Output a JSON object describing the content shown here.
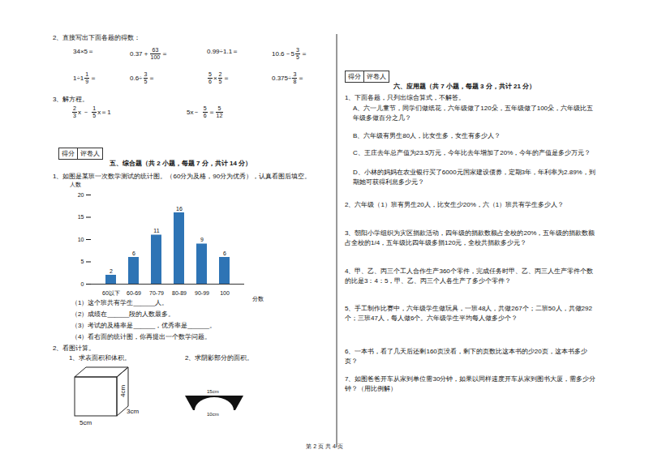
{
  "page": {
    "q2": {
      "title": "2、直接写出下面各题的得数：",
      "rows": [
        [
          [
            "34×5＝"
          ],
          [
            "0.37＋",
            {
              "n": "63",
              "d": "100"
            },
            "＝"
          ],
          [
            "0.99÷1.1＝"
          ],
          [
            "10.6－5",
            {
              "n": "3",
              "d": "5"
            },
            "＝"
          ]
        ],
        [
          [
            "1÷1",
            {
              "n": "1",
              "d": "9"
            },
            "＝"
          ],
          [
            "0.6÷",
            {
              "n": "3",
              "d": "5"
            },
            "＝"
          ],
          [
            {
              "n": "5",
              "d": "6"
            },
            "×",
            {
              "n": "2",
              "d": "5"
            },
            "＝"
          ],
          [
            "0.375÷",
            {
              "n": "3",
              "d": "8"
            },
            "＝"
          ]
        ]
      ]
    },
    "q3": {
      "title": "3、解方程。",
      "equations": [
        [
          {
            "n": "2",
            "d": "3"
          },
          "x － ",
          {
            "n": "1",
            "d": "5"
          },
          "x＝1"
        ],
        [
          "5x－ ",
          {
            "n": "5",
            "d": "6"
          },
          "＝",
          {
            "n": "5",
            "d": "12"
          }
        ]
      ]
    },
    "score_box": [
      "得分",
      "评卷人"
    ],
    "section5": {
      "heading": "五、综合题（共 2 小题，每题 7 分，共计 14 分）",
      "q1": {
        "text": "1、如图是某班一次数学测试的统计图。（60分为及格，90分为优秀），认真看图后填空。",
        "blanks": [
          "（1）这个班共有学生______人。",
          "（2）成绩在______段的人数最多。",
          "（3）考试的及格率是______，优秀率是______。",
          "（4）看右面的统计图，你再提出一个数学问题。"
        ]
      },
      "q2": {
        "title": "2、看图计算。",
        "parts": [
          {
            "title": "1、求表面积和体积。",
            "labels": [
              "4cm",
              "3cm",
              "5cm"
            ]
          },
          {
            "title": "2、求阴影部分的面积。",
            "labels": [
              "15cm",
              "10cm"
            ]
          }
        ]
      }
    },
    "section6": {
      "heading": "六、应用题（共 7 小题，每题 3 分，共计 21 分）",
      "items": [
        "1、下面各题，只列出综合算式，不解答。",
        "A、六一儿童节，同学们做纸花，六年级做了120朵，五年级做了100朵，六年级比五年级多做百分之几？",
        "B、六年级有男生80人，比女生多，女生有多少人？",
        "C、王庄去年总产值为23.5万元，今年比去年增加了20%，今年的产值是多少万元？",
        "D、小林的妈妈在农业银行买了6000元国家建设债券，定期3年，年利率为2.89%，到期她可获得利息多少元？",
        "2、六年级（1）班有男生20人，比女生少20%，六（1）班共有学生多少人？",
        "3、朝阳小学组织为灾区捐款活动，四年级的捐款数额占全校的20%，五年级的捐款数额占全校的1/4，五年级比四年级多捐120元，全校共捐款多少元？",
        "4、甲、乙、丙三个工人合作生产360个零件，完成任务时甲、乙、丙三人生产零件个数的比是3：4：5，甲、乙、丙三个人各生产了多少个零件？",
        "5、手工制作比赛中，六年级学生做玩具，一班48人，共做267个；二班50人，共做292个；三班47人，每人做6个。六年级学生平均每人做多少个？",
        "6、一本书，看了几天后还剩160页没看，剩下的页数比这本书的少20页，这本书多少页？",
        "7、如图爸爸开车从家到单位需30分钟，如果以同样速度开车从家到图书大厦，需多少分钟？（用比例解）"
      ]
    },
    "footer": "第 2 页 共 4 页"
  },
  "chart_data": {
    "type": "bar",
    "categories": [
      "60以下",
      "60-69",
      "70-79",
      "80-89",
      "90-99",
      "100"
    ],
    "values": [
      2,
      6,
      11,
      16,
      9,
      6
    ],
    "color": "#2e74b5",
    "ylim": [
      0,
      20
    ],
    "yticks": [
      0,
      5,
      10,
      15,
      20
    ],
    "ylabel": "人数",
    "xlabel": "分数",
    "data_labels": true,
    "grid": false
  }
}
